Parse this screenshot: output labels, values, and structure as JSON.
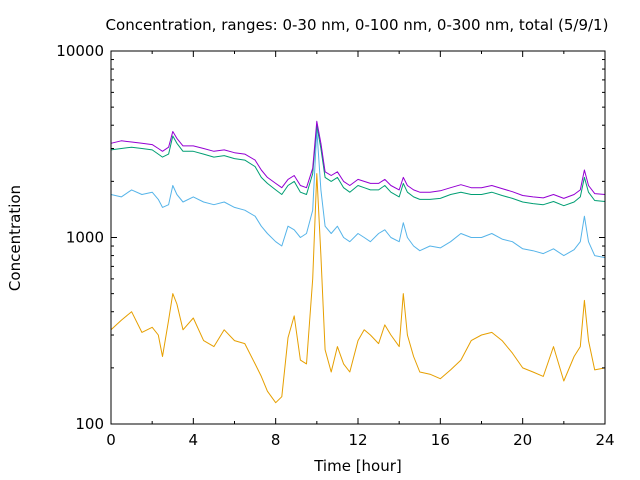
{
  "chart_data": {
    "type": "line",
    "title": "Concentration, ranges: 0-30 nm, 0-100 nm, 0-300 nm, total (5/9/1)",
    "xlabel": "Time [hour]",
    "ylabel": "Concentration",
    "xlim": [
      0,
      24
    ],
    "ylim": [
      100,
      10000
    ],
    "yscale": "log",
    "grid": false,
    "legend": "none",
    "x_ticks": [
      0,
      4,
      8,
      12,
      16,
      20,
      24
    ],
    "x_tick_labels": [
      "0",
      "4",
      "8",
      "12",
      "16",
      "20",
      "24"
    ],
    "y_ticks": [
      100,
      1000,
      10000
    ],
    "y_tick_labels": [
      "100",
      "1000",
      "10000"
    ],
    "x": [
      0,
      0.5,
      1,
      1.5,
      2,
      2.3,
      2.5,
      2.8,
      3,
      3.2,
      3.5,
      4,
      4.5,
      5,
      5.5,
      6,
      6.5,
      7,
      7.3,
      7.6,
      8,
      8.3,
      8.6,
      8.9,
      9.2,
      9.5,
      9.8,
      10,
      10.2,
      10.4,
      10.7,
      11,
      11.3,
      11.6,
      12,
      12.3,
      12.6,
      13,
      13.3,
      13.6,
      14,
      14.2,
      14.4,
      14.7,
      15,
      15.5,
      16,
      16.5,
      17,
      17.5,
      18,
      18.5,
      19,
      19.5,
      20,
      20.5,
      21,
      21.5,
      22,
      22.5,
      22.8,
      23,
      23.2,
      23.5,
      24
    ],
    "series": [
      {
        "color": "#e69f00",
        "values": [
          320,
          360,
          400,
          310,
          330,
          300,
          230,
          360,
          500,
          440,
          320,
          370,
          280,
          260,
          320,
          280,
          270,
          210,
          180,
          150,
          130,
          140,
          290,
          380,
          220,
          210,
          600,
          2200,
          800,
          250,
          190,
          260,
          210,
          190,
          280,
          320,
          300,
          270,
          340,
          300,
          260,
          500,
          300,
          230,
          190,
          185,
          175,
          195,
          220,
          280,
          300,
          310,
          280,
          240,
          200,
          190,
          180,
          260,
          170,
          230,
          260,
          460,
          280,
          195,
          200
        ]
      },
      {
        "color": "#56b4e9",
        "values": [
          1700,
          1650,
          1800,
          1700,
          1750,
          1600,
          1450,
          1500,
          1900,
          1700,
          1550,
          1650,
          1550,
          1500,
          1550,
          1450,
          1400,
          1300,
          1150,
          1050,
          950,
          900,
          1150,
          1100,
          1000,
          1050,
          1400,
          3800,
          1800,
          1150,
          1050,
          1150,
          1000,
          950,
          1050,
          1000,
          950,
          1050,
          1100,
          1000,
          950,
          1200,
          1000,
          900,
          850,
          900,
          880,
          950,
          1050,
          1000,
          1000,
          1050,
          980,
          950,
          870,
          850,
          820,
          870,
          800,
          860,
          950,
          1300,
          950,
          800,
          780
        ]
      },
      {
        "color": "#009e73",
        "values": [
          2950,
          3000,
          3050,
          3000,
          2950,
          2800,
          2700,
          2800,
          3500,
          3200,
          2900,
          2900,
          2800,
          2700,
          2750,
          2650,
          2600,
          2400,
          2100,
          1950,
          1800,
          1700,
          1900,
          2000,
          1750,
          1700,
          2200,
          4000,
          3000,
          2100,
          2000,
          2100,
          1850,
          1750,
          1900,
          1850,
          1800,
          1800,
          1900,
          1750,
          1650,
          1950,
          1750,
          1650,
          1600,
          1600,
          1620,
          1700,
          1750,
          1700,
          1700,
          1750,
          1680,
          1620,
          1550,
          1520,
          1500,
          1560,
          1480,
          1550,
          1650,
          2100,
          1750,
          1580,
          1560
        ]
      },
      {
        "color": "#9400d3",
        "values": [
          3200,
          3300,
          3250,
          3200,
          3150,
          3000,
          2900,
          3050,
          3700,
          3400,
          3100,
          3100,
          3000,
          2900,
          2950,
          2850,
          2800,
          2600,
          2300,
          2100,
          1950,
          1850,
          2050,
          2150,
          1900,
          1850,
          2350,
          4200,
          3200,
          2250,
          2150,
          2250,
          2000,
          1900,
          2050,
          2000,
          1950,
          1950,
          2050,
          1900,
          1800,
          2100,
          1900,
          1800,
          1750,
          1750,
          1780,
          1850,
          1920,
          1850,
          1850,
          1900,
          1830,
          1760,
          1680,
          1650,
          1630,
          1700,
          1620,
          1700,
          1800,
          2300,
          1900,
          1720,
          1700
        ]
      }
    ]
  }
}
